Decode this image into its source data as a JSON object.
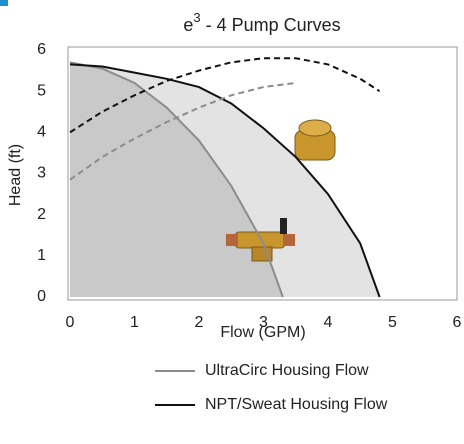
{
  "chart_data": {
    "type": "line",
    "title_parts": [
      "e",
      "3",
      " - 4 Pump Curves"
    ],
    "xlabel": "Flow (GPM)",
    "ylabel": "Head (ft)",
    "xlim": [
      0,
      6
    ],
    "xticks": [
      0,
      1,
      2,
      3,
      4,
      5,
      6
    ],
    "ylim": [
      0,
      6
    ],
    "yticks": [
      0,
      1,
      2,
      3,
      4,
      5,
      6
    ],
    "series": [
      {
        "name": "UltraCirc Housing Flow",
        "color": "#8c8c8c",
        "fill": "#c9c9c9",
        "dash": false,
        "x": [
          0,
          0.5,
          1,
          1.5,
          2,
          2.5,
          3,
          3.3
        ],
        "values": [
          5.7,
          5.55,
          5.2,
          4.6,
          3.8,
          2.7,
          1.3,
          0
        ]
      },
      {
        "name": "NPT/Sweat Housing Flow",
        "color": "#111111",
        "fill": "#e3e3e3",
        "dash": false,
        "x": [
          0,
          0.5,
          1,
          1.5,
          2,
          2.5,
          3,
          3.5,
          4,
          4.5,
          4.8
        ],
        "values": [
          5.65,
          5.6,
          5.45,
          5.3,
          5.1,
          4.7,
          4.1,
          3.4,
          2.5,
          1.3,
          0
        ]
      },
      {
        "color": "#111111",
        "dash": true,
        "x": [
          0,
          0.5,
          1,
          1.5,
          2,
          2.5,
          3,
          3.5,
          4,
          4.5,
          4.8
        ],
        "values": [
          4.0,
          4.5,
          4.9,
          5.25,
          5.5,
          5.7,
          5.8,
          5.8,
          5.65,
          5.3,
          5.0
        ]
      },
      {
        "color": "#8c8c8c",
        "dash": true,
        "x": [
          0,
          0.5,
          1,
          1.5,
          2,
          2.5,
          3,
          3.5
        ],
        "values": [
          2.85,
          3.4,
          3.85,
          4.25,
          4.6,
          4.9,
          5.1,
          5.2
        ]
      }
    ]
  }
}
